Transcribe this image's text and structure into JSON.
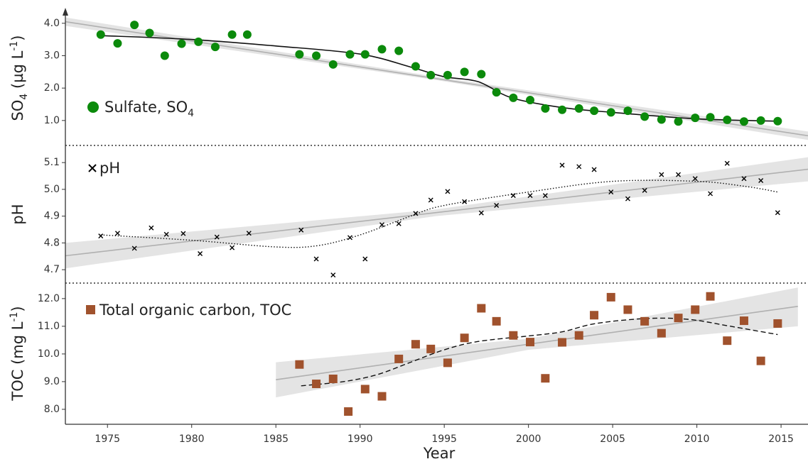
{
  "chart_data": [
    {
      "type": "scatter",
      "marker": "circle",
      "color": "#0b8a0b",
      "ylabel": [
        "SO",
        "4",
        " (µg L",
        "-1",
        ")"
      ],
      "legend": [
        "Sulfate, SO",
        "4"
      ],
      "xlim": [
        1972.5,
        2016.6
      ],
      "ylim": [
        0.23,
        4.39
      ],
      "yticks": [
        {
          "value": 1,
          "label": "1.0"
        },
        {
          "value": 2,
          "label": "2.0"
        },
        {
          "value": 3,
          "label": "3.0"
        },
        {
          "value": 4,
          "label": "4.0"
        }
      ],
      "x": [
        1974.6,
        1975.6,
        1976.6,
        1977.5,
        1978.4,
        1979.4,
        1980.4,
        1981.4,
        1982.4,
        1983.3,
        1986.4,
        1987.4,
        1988.4,
        1989.4,
        1990.3,
        1991.3,
        1992.3,
        1993.3,
        1994.2,
        1995.2,
        1996.2,
        1997.2,
        1998.1,
        1999.1,
        2000.1,
        2001.0,
        2002.0,
        2003.0,
        2003.9,
        2004.9,
        2005.9,
        2006.9,
        2007.9,
        2008.9,
        2009.9,
        2010.8,
        2011.8,
        2012.8,
        2013.8,
        2014.8
      ],
      "values": [
        3.65,
        3.38,
        3.95,
        3.7,
        3.0,
        3.37,
        3.43,
        3.27,
        3.65,
        3.65,
        3.04,
        3.0,
        2.73,
        3.04,
        3.04,
        3.2,
        3.15,
        2.67,
        2.4,
        2.4,
        2.5,
        2.43,
        1.87,
        1.7,
        1.63,
        1.37,
        1.33,
        1.37,
        1.3,
        1.25,
        1.3,
        1.12,
        1.03,
        0.97,
        1.08,
        1.1,
        1.02,
        0.97,
        1.0,
        0.98
      ],
      "trend_color": "#b0b0b0",
      "band_color": "#e4e4e4",
      "trend": {
        "x": [
          1972.5,
          2016.6
        ],
        "values": [
          4.05,
          0.53
        ]
      },
      "band": {
        "x": [
          1972.5,
          1994.5,
          2016.6
        ],
        "lower": [
          3.92,
          2.25,
          0.4
        ],
        "upper": [
          4.18,
          2.35,
          0.66
        ]
      },
      "smooth_style": "solid",
      "smooth": {
        "x": [
          1974.6,
          1980,
          1985,
          1990,
          1993,
          1995,
          1997,
          1999,
          2002,
          2005,
          2010,
          2014.8
        ],
        "values": [
          3.62,
          3.5,
          3.3,
          3.05,
          2.65,
          2.35,
          2.2,
          1.7,
          1.4,
          1.25,
          1.05,
          0.98
        ]
      }
    },
    {
      "type": "scatter",
      "marker": "cross",
      "color": "#000000",
      "ylabel": [
        "pH"
      ],
      "legend": [
        "pH"
      ],
      "xlim": [
        1972.5,
        2016.6
      ],
      "ylim": [
        4.65,
        5.164
      ],
      "yticks": [
        4.7,
        4.8,
        4.9,
        {
          "value": 5,
          "label": "5.0"
        },
        5.1
      ],
      "x": [
        1974.6,
        1975.6,
        1976.6,
        1977.6,
        1978.5,
        1979.5,
        1980.5,
        1981.5,
        1982.4,
        1983.4,
        1986.5,
        1987.4,
        1988.4,
        1989.4,
        1990.3,
        1991.3,
        1992.3,
        1993.3,
        1994.2,
        1995.2,
        1996.2,
        1997.2,
        1998.1,
        1999.1,
        2000.1,
        2001.0,
        2002.0,
        2003.0,
        2003.9,
        2004.9,
        2005.9,
        2006.9,
        2007.9,
        2008.9,
        2009.9,
        2010.8,
        2011.8,
        2012.8,
        2013.8,
        2014.8
      ],
      "values": [
        4.826,
        4.836,
        4.78,
        4.856,
        4.832,
        4.835,
        4.76,
        4.822,
        4.782,
        4.836,
        4.848,
        4.74,
        4.68,
        4.82,
        4.74,
        4.868,
        4.872,
        4.91,
        4.96,
        4.992,
        4.954,
        4.912,
        4.94,
        4.977,
        4.977,
        4.977,
        5.09,
        5.085,
        5.074,
        4.99,
        4.965,
        4.996,
        5.055,
        5.055,
        5.04,
        4.984,
        5.097,
        5.04,
        5.033,
        4.913
      ],
      "trend_color": "#b0b0b0",
      "band_color": "#e4e4e4",
      "trend": {
        "x": [
          1972.5,
          2016.6
        ],
        "values": [
          4.752,
          5.075
        ]
      },
      "band": {
        "x": [
          1972.5,
          1994.5,
          2016.6
        ],
        "lower": [
          4.705,
          4.9,
          5.03
        ],
        "upper": [
          4.8,
          4.925,
          5.12
        ]
      },
      "smooth_style": "dotted",
      "smooth": {
        "x": [
          1974.6,
          1980,
          1985,
          1987.5,
          1990,
          1993,
          1995,
          2000,
          2005,
          2010,
          2013,
          2014.8
        ],
        "values": [
          4.83,
          4.81,
          4.785,
          4.79,
          4.83,
          4.9,
          4.94,
          4.99,
          5.03,
          5.03,
          5.01,
          4.99
        ]
      }
    },
    {
      "type": "scatter",
      "marker": "square",
      "color": "#a0522d",
      "ylabel": [
        "TOC (mg L",
        "-1",
        ")"
      ],
      "legend": [
        "Total organic carbon, TOC"
      ],
      "xlabel": "Year",
      "xlim": [
        1972.5,
        2016.6
      ],
      "ylim": [
        7.46,
        12.56
      ],
      "xticks": [
        1975,
        1980,
        1985,
        1990,
        1995,
        2000,
        2005,
        2010,
        2015
      ],
      "yticks": [
        {
          "value": 8,
          "label": "8.0"
        },
        {
          "value": 9,
          "label": "9.0"
        },
        {
          "value": 10,
          "label": "10.0"
        },
        {
          "value": 11,
          "label": "11.0"
        },
        {
          "value": 12,
          "label": "12.0"
        }
      ],
      "x": [
        1986.4,
        1987.4,
        1988.4,
        1989.3,
        1990.3,
        1991.3,
        1992.3,
        1993.3,
        1994.2,
        1995.2,
        1996.2,
        1997.2,
        1998.1,
        1999.1,
        2000.1,
        2001.0,
        2002.0,
        2003.0,
        2003.9,
        2004.9,
        2005.9,
        2006.9,
        2007.9,
        2008.9,
        2009.9,
        2010.8,
        2011.8,
        2012.8,
        2013.8,
        2014.8
      ],
      "values": [
        9.62,
        8.92,
        9.1,
        7.92,
        8.73,
        8.47,
        9.82,
        10.35,
        10.18,
        9.68,
        10.58,
        11.65,
        11.18,
        10.67,
        10.43,
        9.12,
        10.42,
        10.67,
        11.4,
        12.05,
        11.6,
        11.18,
        10.75,
        11.3,
        11.6,
        12.08,
        10.48,
        11.2,
        9.75,
        11.1
      ],
      "trend_color": "#b0b0b0",
      "band_color": "#e4e4e4",
      "trend": {
        "x": [
          1985,
          2016
        ],
        "values": [
          9.07,
          11.72
        ]
      },
      "band": {
        "x": [
          1985,
          2000,
          2016
        ],
        "lower": [
          8.43,
          10.15,
          11.0
        ],
        "upper": [
          9.7,
          10.55,
          12.4
        ]
      },
      "smooth_style": "dashed",
      "smooth": {
        "x": [
          1986.5,
          1989,
          1991,
          1993,
          1995,
          1997,
          2000,
          2002,
          2004,
          2007,
          2009.5,
          2012,
          2014.8
        ],
        "values": [
          8.85,
          9.0,
          9.25,
          9.7,
          10.15,
          10.45,
          10.65,
          10.8,
          11.1,
          11.28,
          11.25,
          11.0,
          10.7
        ]
      }
    }
  ]
}
